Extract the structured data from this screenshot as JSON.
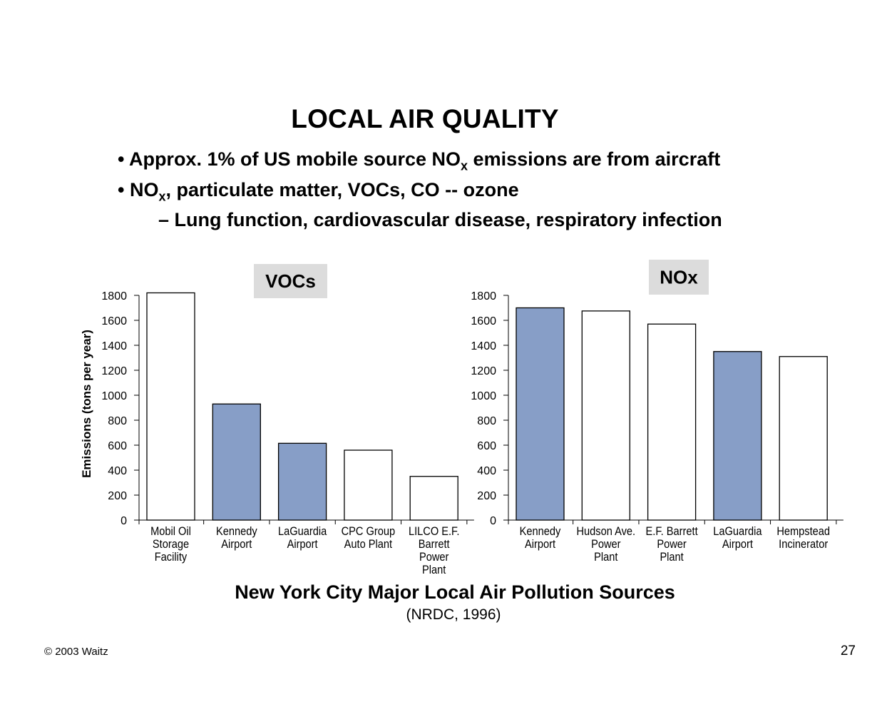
{
  "slide": {
    "title": "LOCAL AIR QUALITY",
    "bullets": [
      {
        "marker": "•",
        "text_before": "Approx. 1% of US mobile source NO",
        "sub": "x",
        "text_after": " emissions are from aircraft"
      },
      {
        "marker": "•",
        "text_before": "NO",
        "sub": "x",
        "text_after": ", particulate matter, VOCs, CO -- ozone"
      },
      {
        "marker": "–",
        "text": "Lung function, cardiovascular disease, respiratory infection"
      }
    ],
    "caption": "New York City Major Local Air Pollution Sources",
    "source": "(NRDC, 1996)",
    "copyright": "© 2003 Waitz",
    "page_number": "27"
  },
  "colors": {
    "airport_bar": "#879ec7",
    "other_bar": "#ffffff",
    "label_box": "#dcdcdc"
  },
  "chart_data": [
    {
      "type": "bar",
      "title": "VOCs",
      "ylabel": "Emissions (tons per year)",
      "ylim": [
        0,
        1800
      ],
      "yticks": [
        0,
        200,
        400,
        600,
        800,
        1000,
        1200,
        1400,
        1600,
        1800
      ],
      "categories": [
        [
          "Mobil Oil",
          "Storage",
          "Facility"
        ],
        [
          "Kennedy",
          "Airport"
        ],
        [
          "LaGuardia",
          "Airport"
        ],
        [
          "CPC Group",
          "Auto Plant"
        ],
        [
          "LILCO E.F.",
          "Barrett",
          "Power",
          "Plant"
        ]
      ],
      "values": [
        1820,
        930,
        615,
        560,
        350
      ],
      "highlight": [
        false,
        true,
        true,
        false,
        false
      ]
    },
    {
      "type": "bar",
      "title": "NOx",
      "ylabel": "",
      "ylim": [
        0,
        1800
      ],
      "yticks": [
        0,
        200,
        400,
        600,
        800,
        1000,
        1200,
        1400,
        1600,
        1800
      ],
      "categories": [
        [
          "Kennedy",
          "Airport"
        ],
        [
          "Hudson Ave.",
          "Power",
          "Plant"
        ],
        [
          "E.F. Barrett",
          "Power",
          "Plant"
        ],
        [
          "LaGuardia",
          "Airport"
        ],
        [
          "Hempstead",
          "Incinerator"
        ]
      ],
      "values": [
        1700,
        1675,
        1570,
        1350,
        1310
      ],
      "highlight": [
        true,
        false,
        false,
        true,
        false
      ]
    }
  ]
}
